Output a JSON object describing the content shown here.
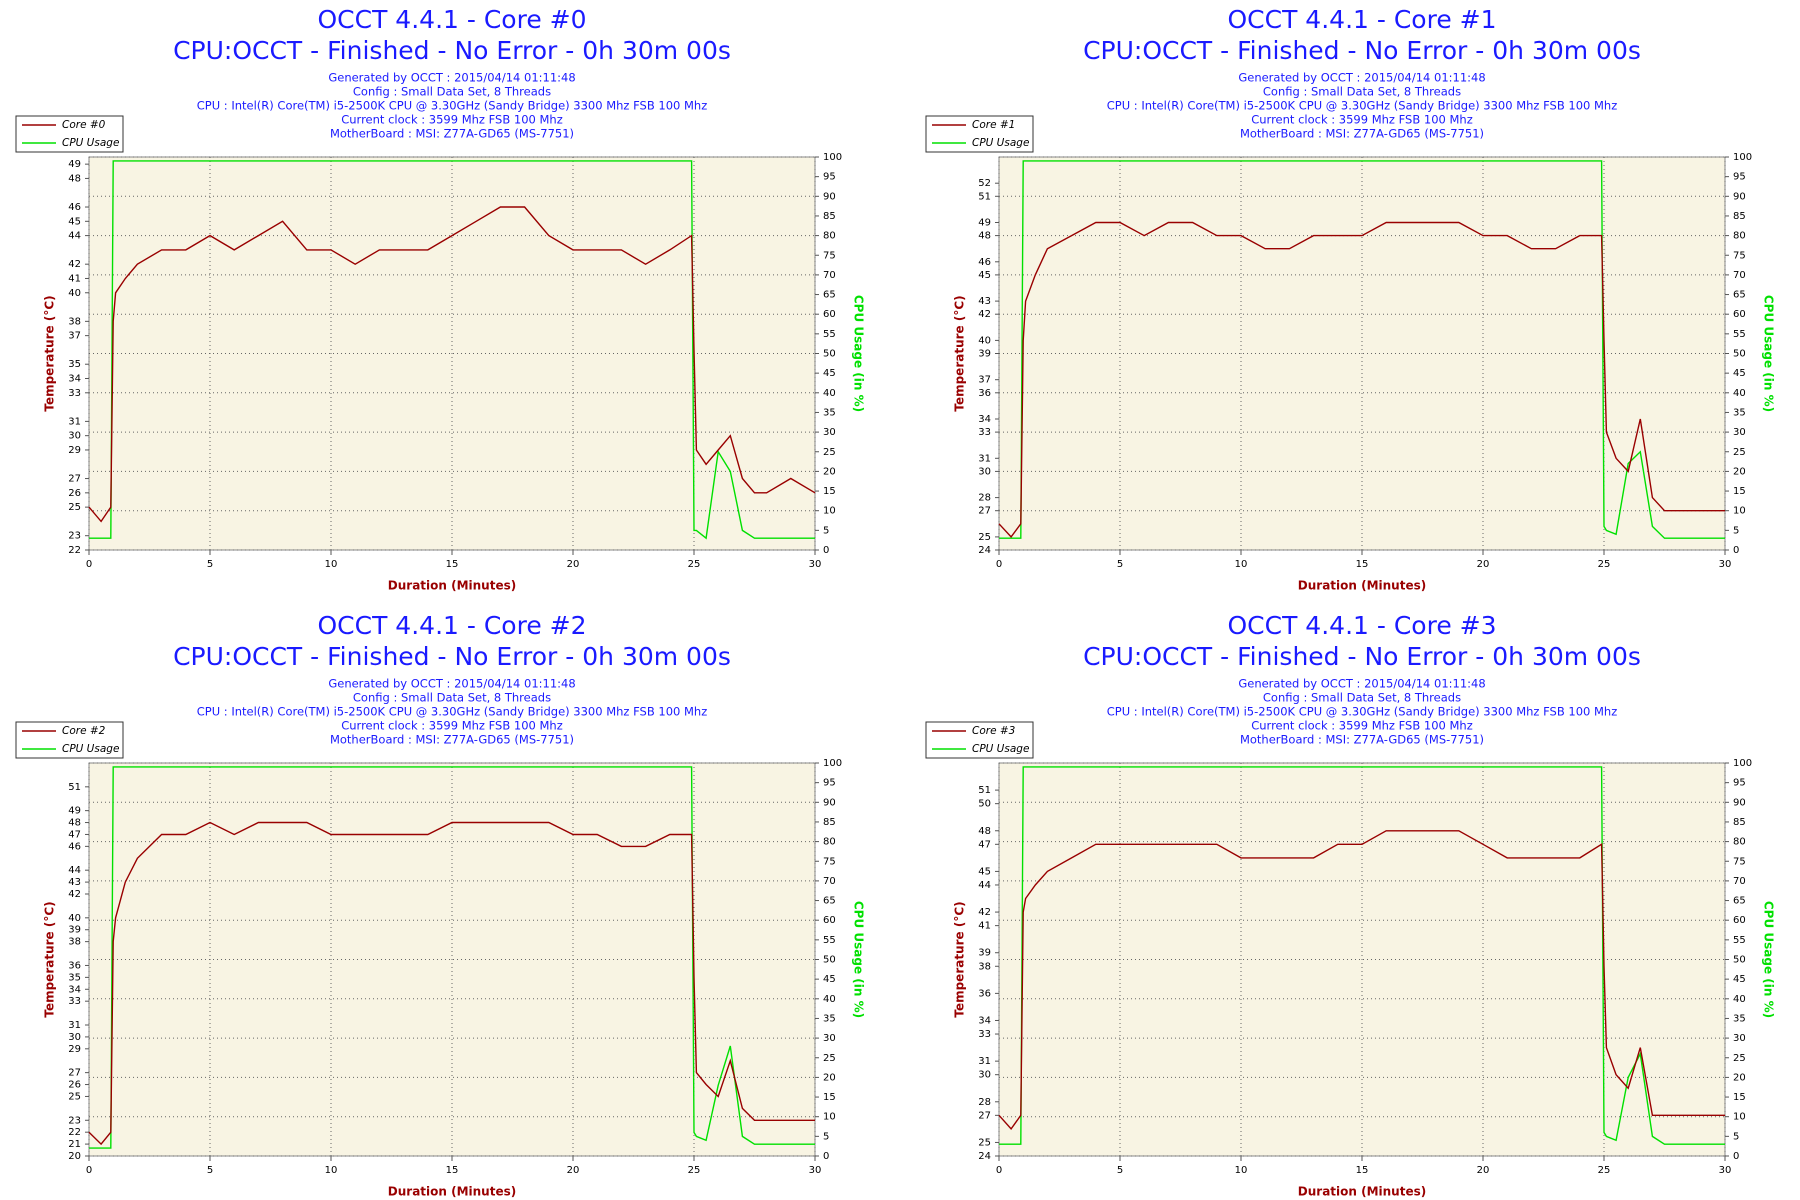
{
  "chart_data": [
    {
      "type": "line",
      "title": "OCCT 4.4.1 - Core #0",
      "subtitle": "CPU:OCCT - Finished - No Error - 0h 30m 00s",
      "info": [
        "Generated by OCCT : 2015/04/14 01:11:48",
        "Config : Small Data Set, 8 Threads",
        "CPU : Intel(R) Core(TM) i5-2500K CPU @ 3.30GHz (Sandy Bridge) 3300 Mhz FSB 100 Mhz",
        "Current clock : 3599 Mhz FSB 100 Mhz",
        "MotherBoard : MSI: Z77A-GD65 (MS-7751)"
      ],
      "x_label": "Duration (Minutes)",
      "y_label": "Temperature (°C)",
      "y2_label": "CPU Usage (in %)",
      "x": [
        0,
        0.5,
        0.9,
        1,
        1.1,
        1.5,
        2,
        3,
        4,
        5,
        6,
        7,
        8,
        9,
        10,
        11,
        12,
        13,
        14,
        15,
        16,
        17,
        18,
        19,
        20,
        21,
        22,
        23,
        24,
        24.9,
        25,
        25.1,
        25.5,
        26,
        26.5,
        27,
        27.5,
        28,
        29,
        30
      ],
      "xlim": [
        0,
        30
      ],
      "xticks": [
        0,
        5,
        10,
        15,
        20,
        25,
        30
      ],
      "ylim": [
        22,
        49.5
      ],
      "yticks": [
        22,
        23,
        25,
        26,
        27,
        29,
        30,
        31,
        33,
        34,
        35,
        37,
        38,
        40,
        41,
        42,
        44,
        45,
        46,
        48,
        49
      ],
      "y2lim": [
        0,
        100
      ],
      "y2ticks": [
        0,
        5,
        10,
        15,
        20,
        25,
        30,
        35,
        40,
        45,
        50,
        55,
        60,
        65,
        70,
        75,
        80,
        85,
        90,
        95,
        100
      ],
      "grid": true,
      "legend": "top-left",
      "series": [
        {
          "name": "Core #0",
          "color": "#990000",
          "values": [
            25,
            24,
            25,
            38,
            40,
            41,
            42,
            43,
            43,
            44,
            43,
            44,
            45,
            43,
            43,
            42,
            43,
            43,
            43,
            44,
            45,
            46,
            46,
            44,
            43,
            43,
            43,
            42,
            43,
            44,
            36,
            29,
            28,
            29,
            30,
            27,
            26,
            26,
            27,
            26
          ]
        },
        {
          "name": "CPU Usage",
          "color": "#00e000",
          "axis": "y2",
          "values": [
            3,
            3,
            3,
            99,
            99,
            99,
            99,
            99,
            99,
            99,
            99,
            99,
            99,
            99,
            99,
            99,
            99,
            99,
            99,
            99,
            99,
            99,
            99,
            99,
            99,
            99,
            99,
            99,
            99,
            99,
            5,
            5,
            3,
            25,
            20,
            5,
            3,
            3,
            3,
            3
          ]
        }
      ]
    },
    {
      "type": "line",
      "title": "OCCT 4.4.1 - Core #1",
      "subtitle": "CPU:OCCT - Finished - No Error - 0h 30m 00s",
      "info": [
        "Generated by OCCT : 2015/04/14 01:11:48",
        "Config : Small Data Set, 8 Threads",
        "CPU : Intel(R) Core(TM) i5-2500K CPU @ 3.30GHz (Sandy Bridge) 3300 Mhz FSB 100 Mhz",
        "Current clock : 3599 Mhz FSB 100 Mhz",
        "MotherBoard : MSI: Z77A-GD65 (MS-7751)"
      ],
      "x_label": "Duration (Minutes)",
      "y_label": "Temperature (°C)",
      "y2_label": "CPU Usage (in %)",
      "x": [
        0,
        0.5,
        0.9,
        1,
        1.1,
        1.5,
        2,
        3,
        4,
        5,
        6,
        7,
        8,
        9,
        10,
        11,
        12,
        13,
        14,
        15,
        16,
        17,
        18,
        19,
        20,
        21,
        22,
        23,
        24,
        24.9,
        25,
        25.1,
        25.5,
        26,
        26.5,
        27,
        27.5,
        28,
        29,
        30
      ],
      "xlim": [
        0,
        30
      ],
      "xticks": [
        0,
        5,
        10,
        15,
        20,
        25,
        30
      ],
      "ylim": [
        24,
        54
      ],
      "yticks": [
        24,
        25,
        27,
        28,
        30,
        31,
        33,
        34,
        36,
        37,
        39,
        40,
        42,
        43,
        45,
        46,
        48,
        49,
        51,
        52
      ],
      "y2lim": [
        0,
        100
      ],
      "y2ticks": [
        0,
        5,
        10,
        15,
        20,
        25,
        30,
        35,
        40,
        45,
        50,
        55,
        60,
        65,
        70,
        75,
        80,
        85,
        90,
        95,
        100
      ],
      "grid": true,
      "legend": "top-left",
      "series": [
        {
          "name": "Core #1",
          "color": "#990000",
          "values": [
            26,
            25,
            26,
            40,
            43,
            45,
            47,
            48,
            49,
            49,
            48,
            49,
            49,
            48,
            48,
            47,
            47,
            48,
            48,
            48,
            49,
            49,
            49,
            49,
            48,
            48,
            47,
            47,
            48,
            48,
            40,
            33,
            31,
            30,
            34,
            28,
            27,
            27,
            27,
            27
          ]
        },
        {
          "name": "CPU Usage",
          "color": "#00e000",
          "axis": "y2",
          "values": [
            3,
            3,
            3,
            99,
            99,
            99,
            99,
            99,
            99,
            99,
            99,
            99,
            99,
            99,
            99,
            99,
            99,
            99,
            99,
            99,
            99,
            99,
            99,
            99,
            99,
            99,
            99,
            99,
            99,
            99,
            6,
            5,
            4,
            22,
            25,
            6,
            3,
            3,
            3,
            3
          ]
        }
      ]
    },
    {
      "type": "line",
      "title": "OCCT 4.4.1 - Core #2",
      "subtitle": "CPU:OCCT - Finished - No Error - 0h 30m 00s",
      "info": [
        "Generated by OCCT : 2015/04/14 01:11:48",
        "Config : Small Data Set, 8 Threads",
        "CPU : Intel(R) Core(TM) i5-2500K CPU @ 3.30GHz (Sandy Bridge) 3300 Mhz FSB 100 Mhz",
        "Current clock : 3599 Mhz FSB 100 Mhz",
        "MotherBoard : MSI: Z77A-GD65 (MS-7751)"
      ],
      "x_label": "Duration (Minutes)",
      "y_label": "Temperature (°C)",
      "y2_label": "CPU Usage (in %)",
      "x": [
        0,
        0.5,
        0.9,
        1,
        1.1,
        1.5,
        2,
        3,
        4,
        5,
        6,
        7,
        8,
        9,
        10,
        11,
        12,
        13,
        14,
        15,
        16,
        17,
        18,
        19,
        20,
        21,
        22,
        23,
        24,
        24.9,
        25,
        25.1,
        25.5,
        26,
        26.5,
        27,
        27.5,
        28,
        29,
        30
      ],
      "xlim": [
        0,
        30
      ],
      "xticks": [
        0,
        5,
        10,
        15,
        20,
        25,
        30
      ],
      "ylim": [
        20,
        53
      ],
      "yticks": [
        20,
        21,
        22,
        23,
        25,
        26,
        27,
        29,
        30,
        31,
        33,
        34,
        35,
        36,
        38,
        39,
        40,
        42,
        43,
        44,
        46,
        47,
        48,
        49,
        51
      ],
      "y2lim": [
        0,
        100
      ],
      "y2ticks": [
        0,
        5,
        10,
        15,
        20,
        25,
        30,
        35,
        40,
        45,
        50,
        55,
        60,
        65,
        70,
        75,
        80,
        85,
        90,
        95,
        100
      ],
      "grid": true,
      "legend": "top-left",
      "series": [
        {
          "name": "Core #2",
          "color": "#990000",
          "values": [
            22,
            21,
            22,
            38,
            40,
            43,
            45,
            47,
            47,
            48,
            47,
            48,
            48,
            48,
            47,
            47,
            47,
            47,
            47,
            48,
            48,
            48,
            48,
            48,
            47,
            47,
            46,
            46,
            47,
            47,
            35,
            27,
            26,
            25,
            28,
            24,
            23,
            23,
            23,
            23
          ]
        },
        {
          "name": "CPU Usage",
          "color": "#00e000",
          "axis": "y2",
          "values": [
            2,
            2,
            2,
            99,
            99,
            99,
            99,
            99,
            99,
            99,
            99,
            99,
            99,
            99,
            99,
            99,
            99,
            99,
            99,
            99,
            99,
            99,
            99,
            99,
            99,
            99,
            99,
            99,
            99,
            99,
            6,
            5,
            4,
            18,
            28,
            5,
            3,
            3,
            3,
            3
          ]
        }
      ]
    },
    {
      "type": "line",
      "title": "OCCT 4.4.1 - Core #3",
      "subtitle": "CPU:OCCT - Finished - No Error - 0h 30m 00s",
      "info": [
        "Generated by OCCT : 2015/04/14 01:11:48",
        "Config : Small Data Set, 8 Threads",
        "CPU : Intel(R) Core(TM) i5-2500K CPU @ 3.30GHz (Sandy Bridge) 3300 Mhz FSB 100 Mhz",
        "Current clock : 3599 Mhz FSB 100 Mhz",
        "MotherBoard : MSI: Z77A-GD65 (MS-7751)"
      ],
      "x_label": "Duration (Minutes)",
      "y_label": "Temperature (°C)",
      "y2_label": "CPU Usage (in %)",
      "x": [
        0,
        0.5,
        0.9,
        1,
        1.1,
        1.5,
        2,
        3,
        4,
        5,
        6,
        7,
        8,
        9,
        10,
        11,
        12,
        13,
        14,
        15,
        16,
        17,
        18,
        19,
        20,
        21,
        22,
        23,
        24,
        24.9,
        25,
        25.1,
        25.5,
        26,
        26.5,
        27,
        27.5,
        28,
        29,
        30
      ],
      "xlim": [
        0,
        30
      ],
      "xticks": [
        0,
        5,
        10,
        15,
        20,
        25,
        30
      ],
      "ylim": [
        24,
        53
      ],
      "yticks": [
        24,
        25,
        27,
        28,
        30,
        31,
        33,
        34,
        36,
        38,
        39,
        41,
        42,
        44,
        45,
        47,
        48,
        50,
        51
      ],
      "y2lim": [
        0,
        100
      ],
      "y2ticks": [
        0,
        5,
        10,
        15,
        20,
        25,
        30,
        35,
        40,
        45,
        50,
        55,
        60,
        65,
        70,
        75,
        80,
        85,
        90,
        95,
        100
      ],
      "grid": true,
      "legend": "top-left",
      "series": [
        {
          "name": "Core #3",
          "color": "#990000",
          "values": [
            27,
            26,
            27,
            42,
            43,
            44,
            45,
            46,
            47,
            47,
            47,
            47,
            47,
            47,
            46,
            46,
            46,
            46,
            47,
            47,
            48,
            48,
            48,
            48,
            47,
            46,
            46,
            46,
            46,
            47,
            38,
            32,
            30,
            29,
            32,
            27,
            27,
            27,
            27,
            27
          ]
        },
        {
          "name": "CPU Usage",
          "color": "#00e000",
          "axis": "y2",
          "values": [
            3,
            3,
            3,
            99,
            99,
            99,
            99,
            99,
            99,
            99,
            99,
            99,
            99,
            99,
            99,
            99,
            99,
            99,
            99,
            99,
            99,
            99,
            99,
            99,
            99,
            99,
            99,
            99,
            99,
            99,
            6,
            5,
            4,
            20,
            26,
            5,
            3,
            3,
            3,
            3
          ]
        }
      ]
    }
  ]
}
